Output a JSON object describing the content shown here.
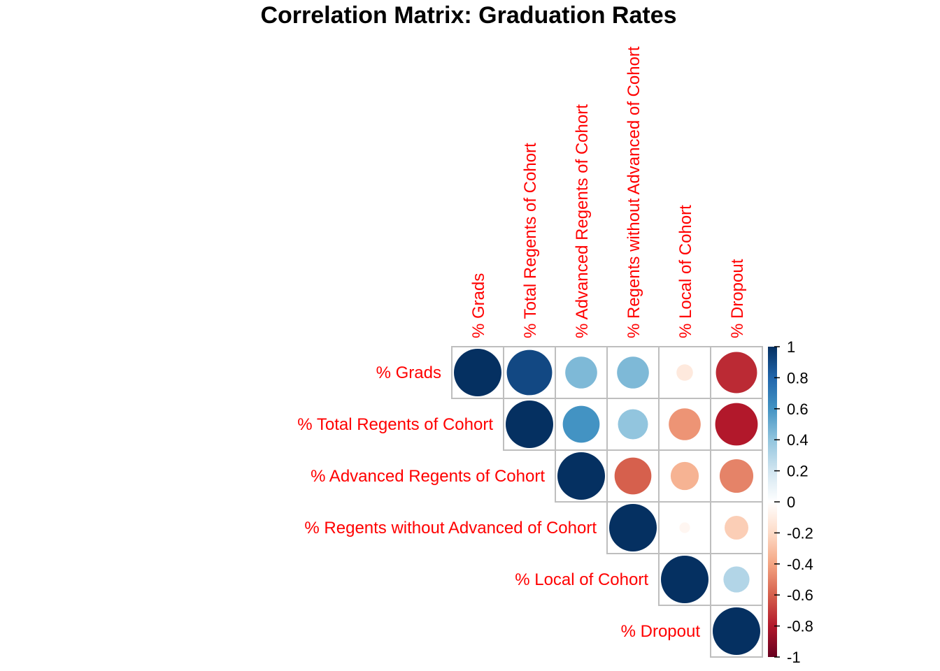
{
  "chart_data": {
    "type": "heatmap",
    "subtype": "correlation-circles-upper-triangle",
    "title": "Correlation Matrix: Graduation Rates",
    "variables": [
      "% Grads",
      "% Total Regents of Cohort",
      "% Advanced Regents of Cohort",
      "% Regents without Advanced of Cohort",
      "% Local of Cohort",
      "% Dropout"
    ],
    "matrix": [
      [
        1.0,
        0.91,
        0.45,
        0.45,
        -0.12,
        -0.75
      ],
      [
        0.91,
        1.0,
        0.6,
        0.4,
        -0.45,
        -0.8
      ],
      [
        0.45,
        0.6,
        1.0,
        -0.6,
        -0.35,
        -0.5
      ],
      [
        0.45,
        0.4,
        -0.6,
        1.0,
        -0.05,
        -0.25
      ],
      [
        -0.12,
        -0.45,
        -0.35,
        -0.05,
        1.0,
        0.3
      ],
      [
        -0.75,
        -0.8,
        -0.5,
        -0.25,
        0.3,
        1.0
      ]
    ],
    "colorbar": {
      "range": [
        -1,
        1
      ],
      "ticks": [
        "1",
        "0.8",
        "0.6",
        "0.4",
        "0.2",
        "0",
        "-0.2",
        "-0.4",
        "-0.6",
        "-0.8",
        "-1"
      ]
    },
    "colors": {
      "negative": "#67001f",
      "neutral": "#ffffff",
      "positive": "#053061",
      "labels": "#ff0000",
      "grid": "#bebebe"
    }
  }
}
